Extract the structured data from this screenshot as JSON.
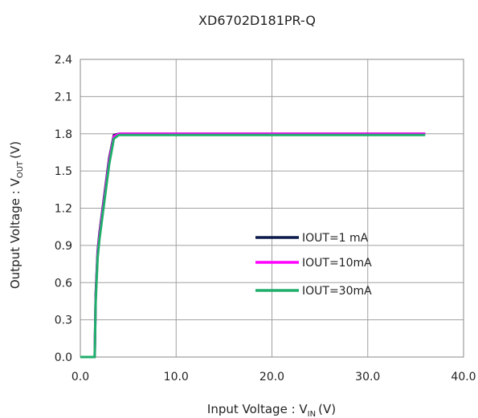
{
  "chart_data": {
    "type": "line",
    "title": "XD6702D181PR-Q",
    "xlabel": "Input Voltage : V",
    "xlabel_sub": "IN",
    "xlabel_unit": "(V)",
    "ylabel": "Output Voltage : V",
    "ylabel_sub": "OUT",
    "ylabel_unit": "(V)",
    "xlim": [
      0,
      40
    ],
    "ylim": [
      0,
      2.4
    ],
    "x_ticks": [
      "0.0",
      "10.0",
      "20.0",
      "30.0",
      "40.0"
    ],
    "y_ticks": [
      "0.0",
      "0.3",
      "0.6",
      "0.9",
      "1.2",
      "1.5",
      "1.8",
      "2.1",
      "2.4"
    ],
    "grid": true,
    "legend_position": "center-right",
    "series": [
      {
        "name": "IOUT=1 mA",
        "color": "#0d1b4c",
        "x": [
          0,
          1.5,
          1.6,
          1.8,
          2.0,
          2.5,
          3.0,
          3.5,
          4.0,
          5.0,
          10.0,
          20.0,
          30.0,
          36.0
        ],
        "y": [
          0,
          0,
          0.5,
          0.85,
          1.0,
          1.3,
          1.6,
          1.79,
          1.8,
          1.8,
          1.8,
          1.8,
          1.8,
          1.8
        ]
      },
      {
        "name": "IOUT=10mA",
        "color": "#ff00ff",
        "x": [
          0,
          1.5,
          1.6,
          1.8,
          2.0,
          2.5,
          3.0,
          3.5,
          4.0,
          5.0,
          10.0,
          20.0,
          30.0,
          36.0
        ],
        "y": [
          0,
          0,
          0.48,
          0.83,
          0.98,
          1.28,
          1.58,
          1.78,
          1.8,
          1.8,
          1.8,
          1.8,
          1.8,
          1.8
        ]
      },
      {
        "name": "IOUT=30mA",
        "color": "#1fae6a",
        "x": [
          0,
          1.5,
          1.6,
          1.8,
          2.0,
          2.5,
          3.0,
          3.5,
          4.0,
          5.0,
          10.0,
          20.0,
          30.0,
          36.0
        ],
        "y": [
          0,
          0,
          0.45,
          0.8,
          0.95,
          1.25,
          1.55,
          1.76,
          1.79,
          1.79,
          1.79,
          1.79,
          1.79,
          1.79
        ]
      }
    ]
  }
}
